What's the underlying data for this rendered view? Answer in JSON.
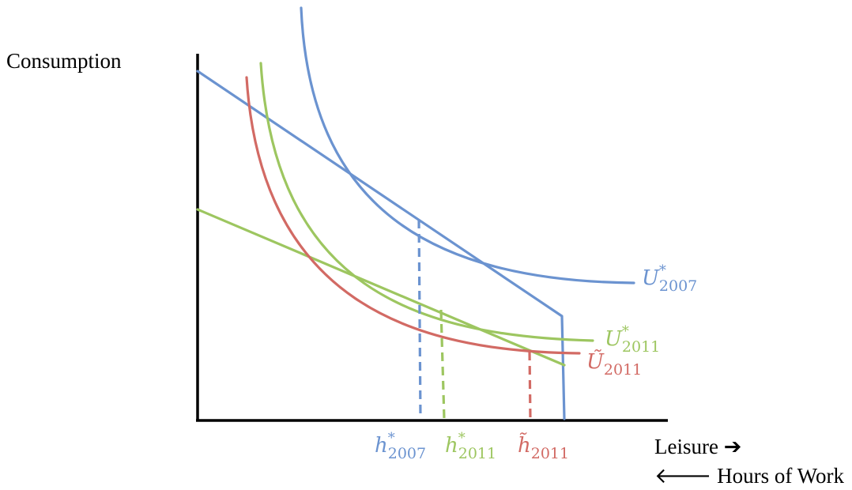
{
  "axes": {
    "y_label": "Consumption",
    "x_label": "Leisure ➔",
    "x_label_2": "🡐 Hours of Work"
  },
  "colors": {
    "blue": "#6b93d0",
    "green": "#9dc660",
    "red": "#d26a64",
    "axis": "#000000"
  },
  "curves": {
    "u2007": {
      "symbol": "U",
      "sup": "*",
      "sub": "2007"
    },
    "u2011": {
      "symbol": "U",
      "sup": "*",
      "sub": "2011"
    },
    "utilde2011": {
      "symbol": "Ũ",
      "sup": "",
      "sub": "2011"
    }
  },
  "points": {
    "h2007": {
      "symbol": "h",
      "sup": "*",
      "sub": "2007"
    },
    "h2011": {
      "symbol": "h",
      "sup": "*",
      "sub": "2011"
    },
    "htilde2011": {
      "symbol": "h̃",
      "sup": "",
      "sub": "2011"
    }
  }
}
